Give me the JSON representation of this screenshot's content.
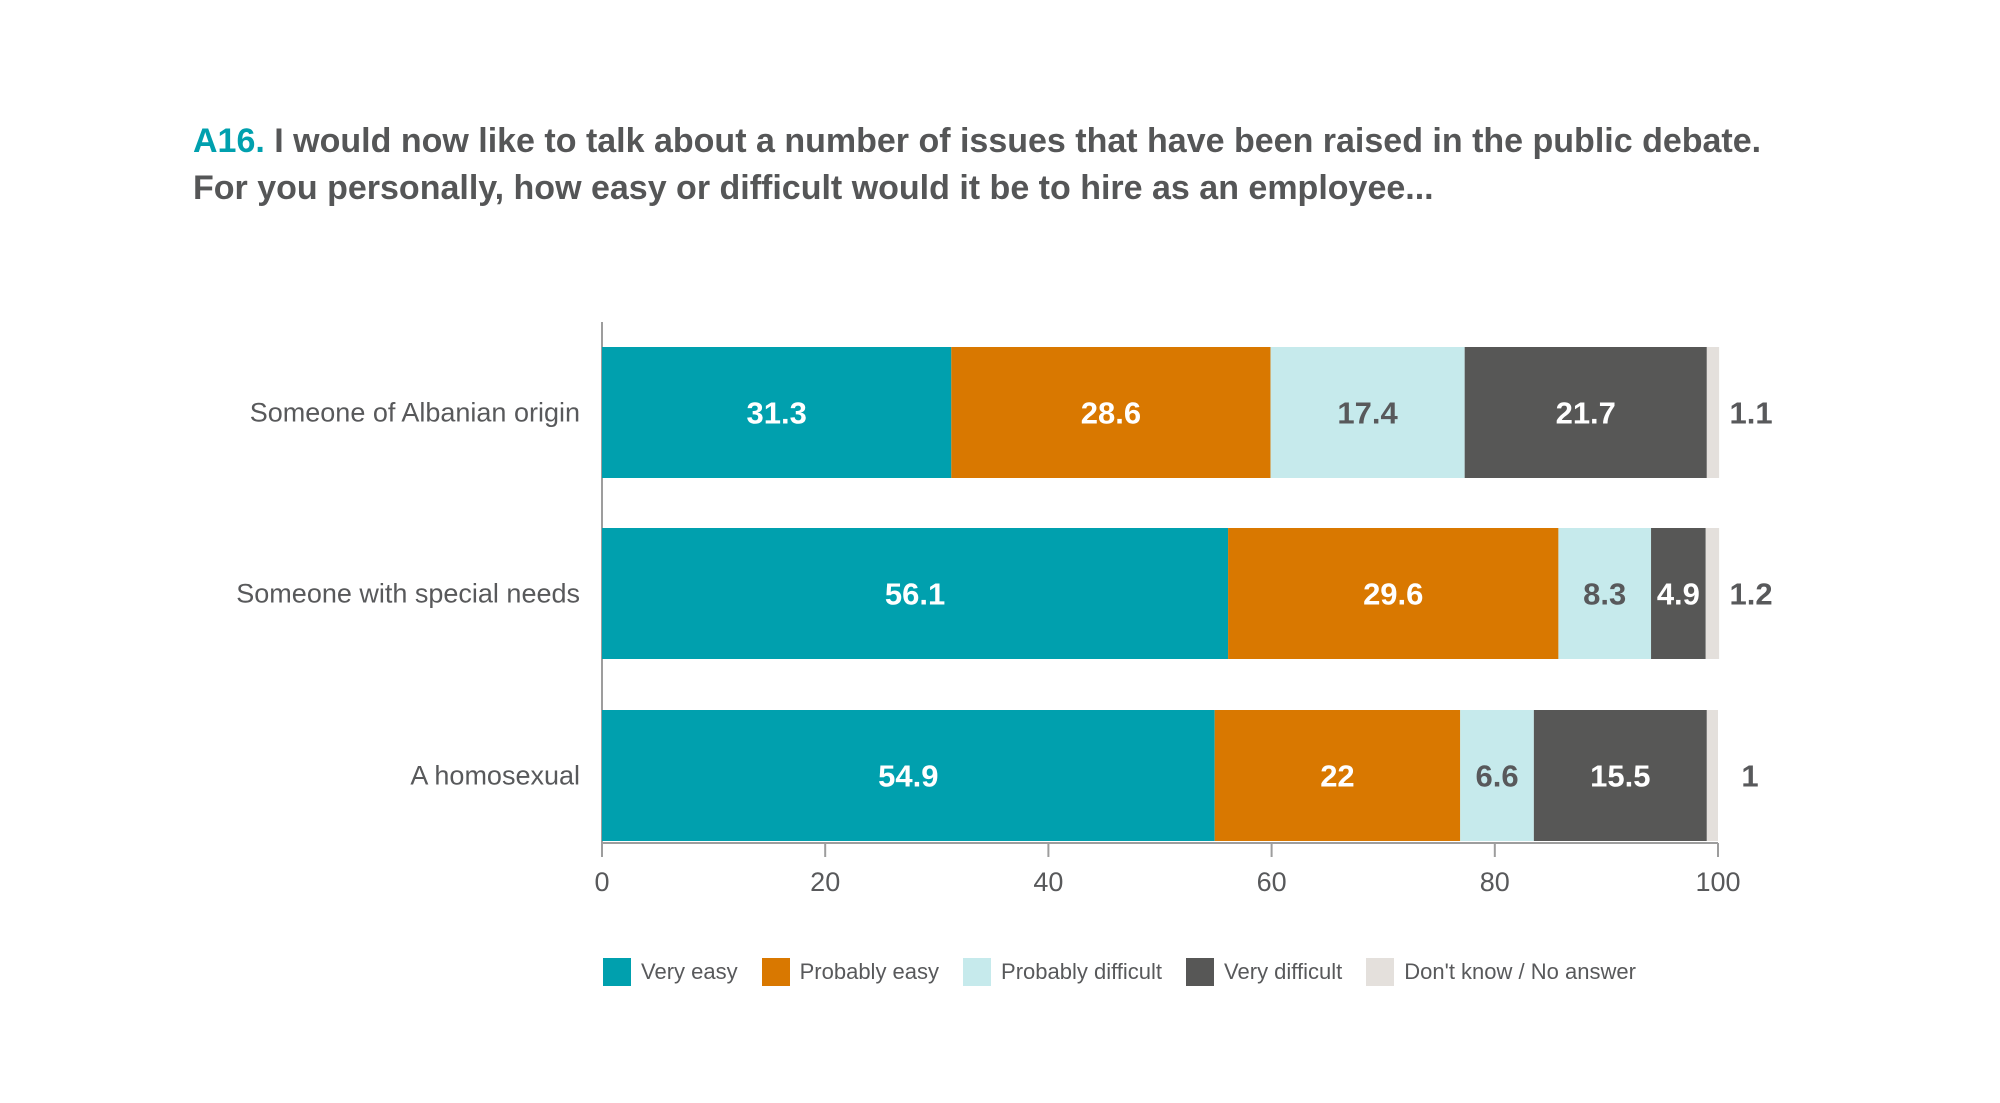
{
  "title": {
    "code": "A16.",
    "line1": "I would now like to talk about a number of issues that have been raised in the public debate.",
    "line2": "For you personally, how easy or difficult would it be to hire as an employee..."
  },
  "chart_data": {
    "type": "bar",
    "orientation": "horizontal",
    "stacked": true,
    "categories": [
      "Someone of Albanian origin",
      "Someone with special needs",
      "A homosexual"
    ],
    "series": [
      {
        "name": "Very easy",
        "color": "#00a0ae",
        "label_color": "#ffffff",
        "values": [
          31.3,
          56.1,
          54.9
        ]
      },
      {
        "name": "Probably easy",
        "color": "#d97800",
        "label_color": "#ffffff",
        "values": [
          28.6,
          29.6,
          22
        ]
      },
      {
        "name": "Probably difficult",
        "color": "#c6eaec",
        "label_color": "#58595b",
        "values": [
          17.4,
          8.3,
          6.6
        ]
      },
      {
        "name": "Very difficult",
        "color": "#575756",
        "label_color": "#ffffff",
        "values": [
          21.7,
          4.9,
          15.5
        ]
      },
      {
        "name": "Don't know / No answer",
        "color": "#e4e0dc",
        "label_color": "#58595b",
        "values": [
          1.1,
          1.2,
          1
        ],
        "label_outside": true
      }
    ],
    "x_ticks": [
      "0",
      "20",
      "40",
      "60",
      "80",
      "100"
    ],
    "xlim": [
      0,
      100
    ],
    "grid": false,
    "legend_position": "bottom"
  }
}
